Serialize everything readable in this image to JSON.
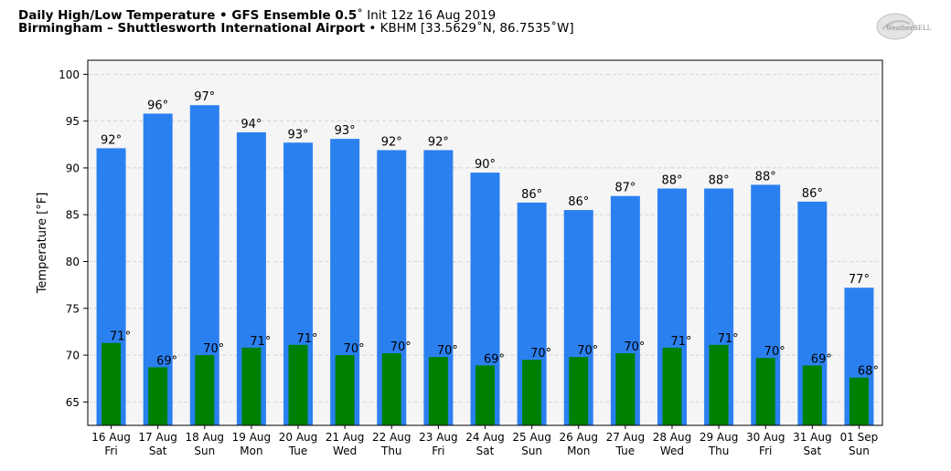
{
  "header": {
    "title_bold": "Daily High/Low Temperature • GFS Ensemble 0.5",
    "title_rest": "˚ Init 12z 16 Aug 2019",
    "location_bold": "Birmingham – Shuttlesworth International Airport",
    "location_rest": " • KBHM [33.5629˚N, 86.7535˚W]",
    "logo_text": "WeatherBELL"
  },
  "colors": {
    "high": "#2b80f0",
    "low": "#008000",
    "plot_bg": "#f5f5f5",
    "grid": "#cccccc"
  },
  "chart_data": {
    "type": "bar",
    "title": "Daily High/Low Temperature • GFS Ensemble 0.5˚ Init 12z 16 Aug 2019",
    "ylabel": "Temperature [°F]",
    "xlabel": "",
    "ylim": [
      62.5,
      101.5
    ],
    "yticks": [
      65,
      70,
      75,
      80,
      85,
      90,
      95,
      100
    ],
    "grid": true,
    "categories": [
      [
        "16 Aug",
        "Fri"
      ],
      [
        "17 Aug",
        "Sat"
      ],
      [
        "18 Aug",
        "Sun"
      ],
      [
        "19 Aug",
        "Mon"
      ],
      [
        "20 Aug",
        "Tue"
      ],
      [
        "21 Aug",
        "Wed"
      ],
      [
        "22 Aug",
        "Thu"
      ],
      [
        "23 Aug",
        "Fri"
      ],
      [
        "24 Aug",
        "Sat"
      ],
      [
        "25 Aug",
        "Sun"
      ],
      [
        "26 Aug",
        "Mon"
      ],
      [
        "27 Aug",
        "Tue"
      ],
      [
        "28 Aug",
        "Wed"
      ],
      [
        "29 Aug",
        "Thu"
      ],
      [
        "30 Aug",
        "Fri"
      ],
      [
        "31 Aug",
        "Sat"
      ],
      [
        "01 Sep",
        "Sun"
      ]
    ],
    "series": [
      {
        "name": "High",
        "values": [
          92.1,
          95.8,
          96.7,
          93.8,
          92.7,
          93.1,
          91.9,
          91.9,
          89.5,
          86.3,
          85.5,
          87.0,
          87.8,
          87.8,
          88.2,
          86.4,
          77.2
        ],
        "labels": [
          "92°",
          "96°",
          "97°",
          "94°",
          "93°",
          "93°",
          "92°",
          "92°",
          "90°",
          "86°",
          "86°",
          "87°",
          "88°",
          "88°",
          "88°",
          "86°",
          "77°"
        ]
      },
      {
        "name": "Low",
        "values": [
          71.3,
          68.7,
          70.0,
          70.8,
          71.1,
          70.0,
          70.2,
          69.8,
          68.9,
          69.5,
          69.8,
          70.2,
          70.8,
          71.1,
          69.7,
          68.9,
          67.6
        ],
        "labels": [
          "71°",
          "69°",
          "70°",
          "71°",
          "71°",
          "70°",
          "70°",
          "70°",
          "69°",
          "70°",
          "70°",
          "70°",
          "71°",
          "71°",
          "70°",
          "69°",
          "68°"
        ]
      }
    ]
  }
}
